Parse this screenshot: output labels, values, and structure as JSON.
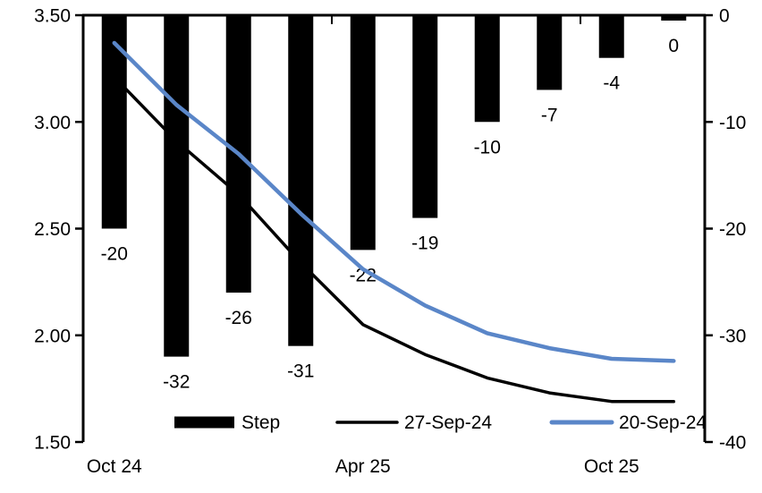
{
  "chart_data": {
    "type": "combo",
    "title": "",
    "n_categories": 10,
    "x_tick_labels": [
      {
        "index": 0,
        "label": "Oct 24"
      },
      {
        "index": 4,
        "label": "Apr 25"
      },
      {
        "index": 8,
        "label": "Oct 25"
      }
    ],
    "left_axis": {
      "min": 1.5,
      "max": 3.5,
      "tick_labels": [
        "3.50",
        "3.00",
        "2.50",
        "2.00",
        "1.50"
      ],
      "tick_values": [
        3.5,
        3.0,
        2.5,
        2.0,
        1.5
      ]
    },
    "right_axis": {
      "min": -40,
      "max": 0,
      "tick_labels": [
        "0",
        "-10",
        "-20",
        "-30",
        "-40"
      ],
      "tick_values": [
        0,
        -10,
        -20,
        -30,
        -40
      ]
    },
    "grid": false,
    "background": "#FFFFFF",
    "legend_position": "bottom-inside",
    "series": [
      {
        "name": "Step",
        "type": "bar",
        "axis": "right",
        "color": "#000000",
        "values": [
          -20,
          -32,
          -26,
          -31,
          -22,
          -19,
          -10,
          -7,
          -4,
          0
        ],
        "data_labels": [
          "-20",
          "-32",
          "-26",
          "-31",
          "-22",
          "-19",
          "-10",
          "-7",
          "-4",
          "0"
        ]
      },
      {
        "name": "27-Sep-24",
        "type": "line",
        "axis": "left",
        "color": "#000000",
        "values": [
          3.21,
          2.91,
          2.66,
          2.34,
          2.05,
          1.91,
          1.8,
          1.73,
          1.69,
          1.69
        ]
      },
      {
        "name": "20-Sep-24",
        "type": "line",
        "axis": "left",
        "color": "#5A86C8",
        "values": [
          3.37,
          3.08,
          2.85,
          2.57,
          2.31,
          2.14,
          2.01,
          1.94,
          1.89,
          1.88
        ]
      }
    ]
  }
}
